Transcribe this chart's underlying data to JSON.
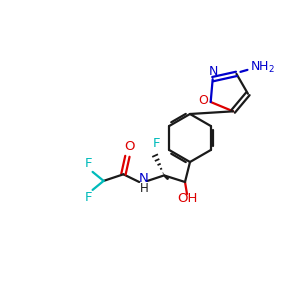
{
  "bg_color": "#ffffff",
  "bond_color": "#1a1a1a",
  "line_width": 1.6,
  "figsize": [
    3.0,
    3.0
  ],
  "dpi": 100,
  "colors": {
    "N": "#0000cc",
    "O": "#dd0000",
    "F": "#00bbbb",
    "C": "#1a1a1a",
    "NH2": "#0000cc"
  }
}
